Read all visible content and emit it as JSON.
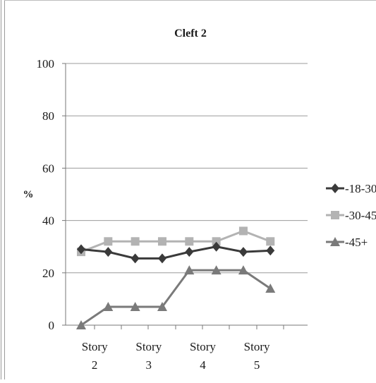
{
  "chart_data": {
    "type": "line",
    "title": "Cleft 2",
    "xlabel": "",
    "ylabel": "%",
    "ylim": [
      0,
      100
    ],
    "yticks": [
      "0",
      "20",
      "40",
      "60",
      "80",
      "100"
    ],
    "x": [
      1,
      2,
      3,
      4,
      5,
      6,
      7,
      8,
      9
    ],
    "xtick_labels": [
      {
        "x": 1.5,
        "lines": [
          "Story",
          "2"
        ]
      },
      {
        "x": 3.5,
        "lines": [
          "Story",
          "3"
        ]
      },
      {
        "x": 5.5,
        "lines": [
          "Story",
          "4"
        ]
      },
      {
        "x": 7.5,
        "lines": [
          "Story",
          "5"
        ]
      }
    ],
    "grid": true,
    "legend_position": "right",
    "series": [
      {
        "name": "18-30",
        "marker": "diamond",
        "color": "#3a3a3a",
        "values": [
          29,
          28,
          25.5,
          25.5,
          28,
          30,
          28,
          28.5,
          null
        ]
      },
      {
        "name": "30-45",
        "marker": "square",
        "color": "#b3b3b3",
        "values": [
          28,
          32,
          32,
          32,
          32,
          32,
          36,
          32,
          null
        ]
      },
      {
        "name": "45+",
        "marker": "triangle",
        "color": "#7a7a7a",
        "values": [
          0,
          7,
          7,
          7,
          21,
          21,
          21,
          14,
          null
        ]
      }
    ]
  }
}
